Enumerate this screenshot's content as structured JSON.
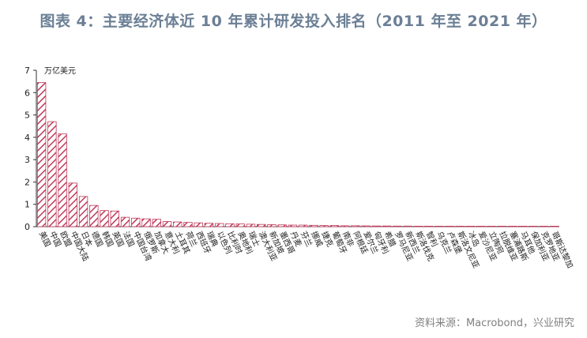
{
  "title": "图表 4：主要经济体近 10 年累计研发投入排名（2011 年至 2021 年）",
  "source": "资料来源：Macrobond，兴业研究",
  "colors": {
    "bar_stroke": "#c0395a",
    "bar_hatch": "#c0395a",
    "axis": "#333333",
    "title": "#6b7f95"
  },
  "chart_data": {
    "type": "bar",
    "unit_label": "万亿美元",
    "ylim": [
      0,
      7
    ],
    "yticks": [
      0,
      1,
      2,
      3,
      4,
      5,
      6,
      7
    ],
    "grid": false,
    "categories": [
      "美国",
      "中国",
      "欧盟",
      "中国大陆",
      "日本",
      "德国",
      "韩国",
      "英国",
      "法国",
      "中国台湾",
      "俄罗斯",
      "加拿大",
      "意大利",
      "土耳其",
      "荷兰",
      "西班牙",
      "瑞典",
      "以色列",
      "比利时",
      "奥地利",
      "瑞士",
      "澳大利亚",
      "新加坡",
      "墨西哥",
      "丹麦",
      "芬兰",
      "挪威",
      "捷克",
      "葡萄牙",
      "南非",
      "阿根廷",
      "爱尔兰",
      "匈牙利",
      "希腊",
      "罗马尼亚",
      "新西兰",
      "斯洛伐克",
      "智利",
      "乌克兰",
      "卢森堡",
      "斯洛文尼亚",
      "冰岛",
      "爱沙尼亚",
      "立陶宛",
      "拉脱维亚",
      "塞浦路斯",
      "马耳他",
      "保加利亚",
      "克罗地亚",
      "哥斯达黎加"
    ],
    "values": [
      6.45,
      4.7,
      4.15,
      1.95,
      1.35,
      0.95,
      0.72,
      0.7,
      0.42,
      0.38,
      0.35,
      0.33,
      0.23,
      0.21,
      0.19,
      0.17,
      0.15,
      0.14,
      0.13,
      0.12,
      0.11,
      0.1,
      0.09,
      0.08,
      0.07,
      0.07,
      0.06,
      0.05,
      0.05,
      0.04,
      0.04,
      0.035,
      0.03,
      0.03,
      0.025,
      0.025,
      0.02,
      0.02,
      0.018,
      0.015,
      0.012,
      0.01,
      0.01,
      0.009,
      0.008,
      0.007,
      0.006,
      0.005,
      0.005,
      0.004
    ]
  }
}
